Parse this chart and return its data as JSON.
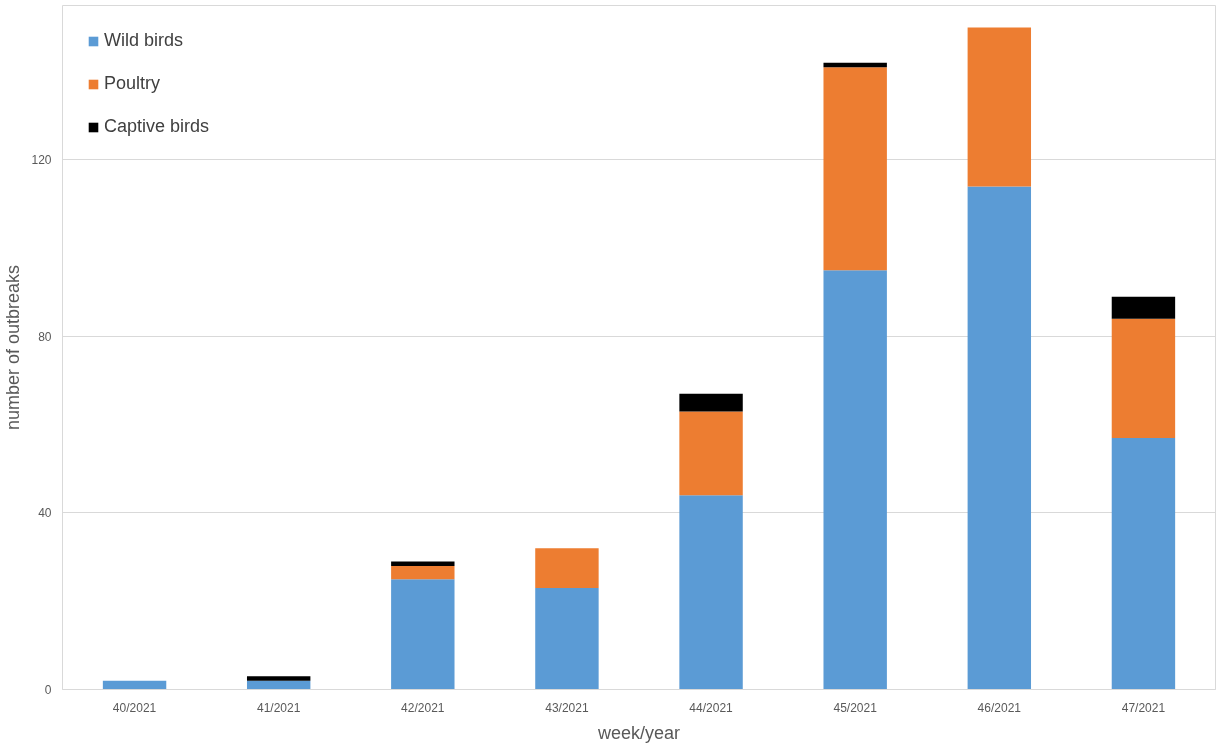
{
  "chart_data": {
    "type": "bar",
    "stacked": true,
    "xlabel": "week/year",
    "ylabel": "number of outbreaks",
    "categories": [
      "40/2021",
      "41/2021",
      "42/2021",
      "43/2021",
      "44/2021",
      "45/2021",
      "46/2021",
      "47/2021"
    ],
    "series": [
      {
        "name": "Wild birds",
        "color": "#5b9bd5",
        "values": [
          2,
          2,
          25,
          23,
          44,
          95,
          114,
          57
        ]
      },
      {
        "name": "Poultry",
        "color": "#ed7d31",
        "values": [
          0,
          0,
          3,
          9,
          19,
          46,
          36,
          27
        ]
      },
      {
        "name": "Captive birds",
        "color": "#000000",
        "values": [
          0,
          1,
          1,
          0,
          4,
          1,
          0,
          5
        ]
      }
    ],
    "ylim": [
      0,
      155
    ],
    "yticks": [
      0,
      40,
      80,
      120
    ],
    "grid": "y",
    "legend": "top left"
  }
}
